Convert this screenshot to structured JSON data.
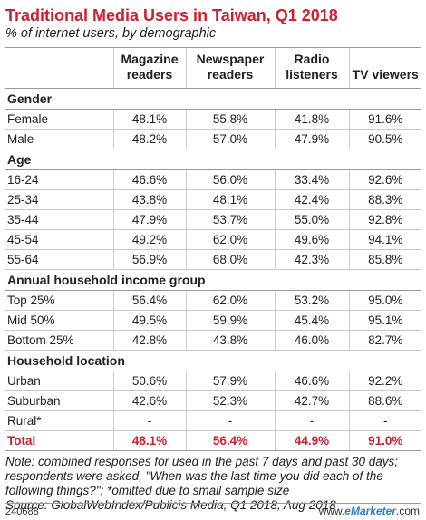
{
  "chart_data": {
    "type": "table",
    "title": "Traditional Media Users in Taiwan, Q1 2018",
    "subtitle": "% of internet users, by demographic",
    "columns": [
      "",
      "Magazine readers",
      "Newspaper readers",
      "Radio listeners",
      "TV viewers"
    ],
    "groups": [
      {
        "name": "Gender",
        "rows": [
          {
            "label": "Female",
            "values": [
              "48.1%",
              "55.8%",
              "41.8%",
              "91.6%"
            ]
          },
          {
            "label": "Male",
            "values": [
              "48.2%",
              "57.0%",
              "47.9%",
              "90.5%"
            ]
          }
        ]
      },
      {
        "name": "Age",
        "rows": [
          {
            "label": "16-24",
            "values": [
              "46.6%",
              "56.0%",
              "33.4%",
              "92.6%"
            ]
          },
          {
            "label": "25-34",
            "values": [
              "43.8%",
              "48.1%",
              "42.4%",
              "88.3%"
            ]
          },
          {
            "label": "35-44",
            "values": [
              "47.9%",
              "53.7%",
              "55.0%",
              "92.8%"
            ]
          },
          {
            "label": "45-54",
            "values": [
              "49.2%",
              "62.0%",
              "49.6%",
              "94.1%"
            ]
          },
          {
            "label": "55-64",
            "values": [
              "56.9%",
              "68.0%",
              "42.3%",
              "85.8%"
            ]
          }
        ]
      },
      {
        "name": "Annual household income group",
        "rows": [
          {
            "label": "Top 25%",
            "values": [
              "56.4%",
              "62.0%",
              "53.2%",
              "95.0%"
            ]
          },
          {
            "label": "Mid 50%",
            "values": [
              "49.5%",
              "59.9%",
              "45.4%",
              "95.1%"
            ]
          },
          {
            "label": "Bottom 25%",
            "values": [
              "42.8%",
              "43.8%",
              "46.0%",
              "82.7%"
            ]
          }
        ]
      },
      {
        "name": "Household location",
        "rows": [
          {
            "label": "Urban",
            "values": [
              "50.6%",
              "57.9%",
              "46.6%",
              "92.2%"
            ]
          },
          {
            "label": "Suburban",
            "values": [
              "42.6%",
              "52.3%",
              "42.7%",
              "88.6%"
            ]
          },
          {
            "label": "Rural*",
            "values": [
              "-",
              "-",
              "-",
              "-"
            ]
          }
        ]
      }
    ],
    "total": {
      "label": "Total",
      "values": [
        "48.1%",
        "56.4%",
        "44.9%",
        "91.0%"
      ]
    }
  },
  "notes": [
    "Note: combined responses for used in the past 7 days and past 30 days;",
    "respondents were asked, \"When was the last time you did each of the",
    "following things?\"; *omitted due to small sample size",
    "Source: GlobalWebIndex/Publicis Media, Q1 2018, Aug 2018"
  ],
  "footer": {
    "id": "240688",
    "brand_prefix": "www.",
    "brand": "eMarketer",
    "brand_suffix": ".com"
  },
  "colors": {
    "accent": "#cc1f2f",
    "brand": "#2f7fc1"
  }
}
